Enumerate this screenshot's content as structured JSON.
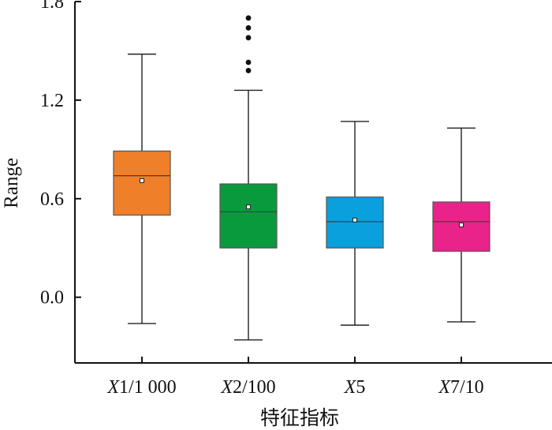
{
  "chart_data": {
    "type": "boxplot",
    "title": "",
    "xlabel": "特征指标",
    "ylabel": "Range",
    "ylim": [
      -0.4,
      1.8
    ],
    "yticks": [
      "0.0",
      "0.6",
      "1.2",
      "1.8"
    ],
    "categories": [
      "X1/1 000",
      "X2/100",
      "X5",
      "X7/10"
    ],
    "boxes": [
      {
        "category": "X1/1 000",
        "whisker_low": -0.16,
        "q1": 0.5,
        "median": 0.74,
        "q3": 0.89,
        "whisker_high": 1.48,
        "mean": 0.71,
        "color": "#F07F2A",
        "outliers": []
      },
      {
        "category": "X2/100",
        "whisker_low": -0.26,
        "q1": 0.3,
        "median": 0.52,
        "q3": 0.69,
        "whisker_high": 1.26,
        "mean": 0.55,
        "color": "#0A9A3E",
        "outliers": [
          1.43,
          1.38,
          1.58,
          1.64,
          1.7
        ]
      },
      {
        "category": "X5",
        "whisker_low": -0.17,
        "q1": 0.3,
        "median": 0.46,
        "q3": 0.61,
        "whisker_high": 1.07,
        "mean": 0.47,
        "color": "#0AA0DE",
        "outliers": []
      },
      {
        "category": "X7/10",
        "whisker_low": -0.15,
        "q1": 0.28,
        "median": 0.46,
        "q3": 0.58,
        "whisker_high": 1.03,
        "mean": 0.44,
        "color": "#E9238A",
        "outliers": []
      }
    ],
    "grid": false,
    "legend": "none"
  }
}
